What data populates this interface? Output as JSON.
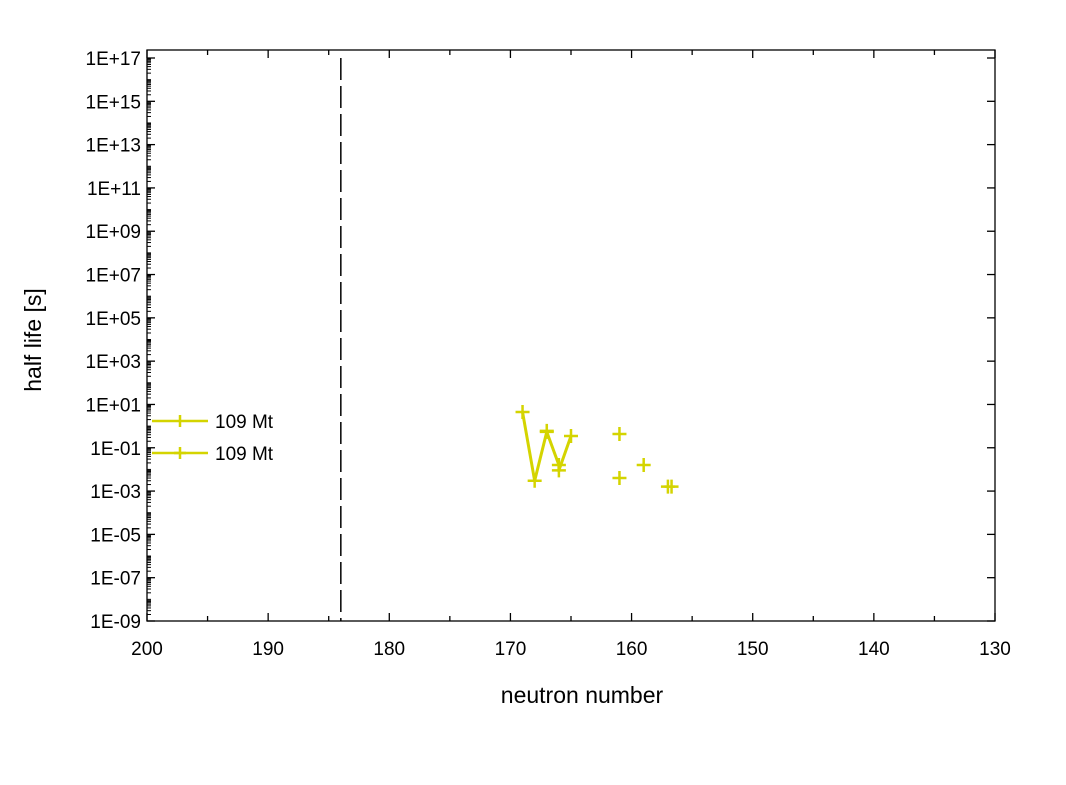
{
  "chart_data": {
    "type": "line",
    "xlabel": "neutron number",
    "ylabel": "half life [s]",
    "xlim": [
      200,
      130
    ],
    "x_reversed": true,
    "ylim": [
      1e-09,
      1e+17
    ],
    "y_scale": "log",
    "x_ticks": [
      "200",
      "190",
      "180",
      "170",
      "160",
      "150",
      "140",
      "130"
    ],
    "x_tick_values": [
      200,
      190,
      180,
      170,
      160,
      150,
      140,
      130
    ],
    "y_ticks": [
      "1E-09",
      "1E-07",
      "1E-05",
      "1E-03",
      "1E-01",
      "1E+01",
      "1E+03",
      "1E+05",
      "1E+07",
      "1E+09",
      "1E+11",
      "1E+13",
      "1E+15",
      "1E+17"
    ],
    "y_tick_values": [
      1e-09,
      1e-07,
      1e-05,
      0.001,
      0.1,
      10.0,
      1000.0,
      100000.0,
      10000000.0,
      1000000000.0,
      100000000000.0,
      10000000000000.0,
      1000000000000000.0,
      1e+17
    ],
    "grid": false,
    "legend_position": "left-middle",
    "reference_line": {
      "x": 184,
      "style": "dashed",
      "color": "#000000"
    },
    "series": [
      {
        "name": "109 Mt",
        "style": "line+cross",
        "color": "#d4d400",
        "points": [
          [
            169,
            4.5
          ],
          [
            168,
            0.003
          ],
          [
            167,
            0.54
          ],
          [
            166,
            0.016
          ],
          [
            166,
            0.009
          ],
          [
            165,
            0.35
          ]
        ]
      },
      {
        "name": "109 Mt",
        "style": "cross",
        "color": "#d4d400",
        "points": [
          [
            167,
            0.6
          ],
          [
            161,
            0.43
          ],
          [
            161,
            0.004
          ],
          [
            159,
            0.016
          ],
          [
            157,
            0.0016
          ],
          [
            156.7,
            0.0016
          ]
        ]
      }
    ]
  }
}
